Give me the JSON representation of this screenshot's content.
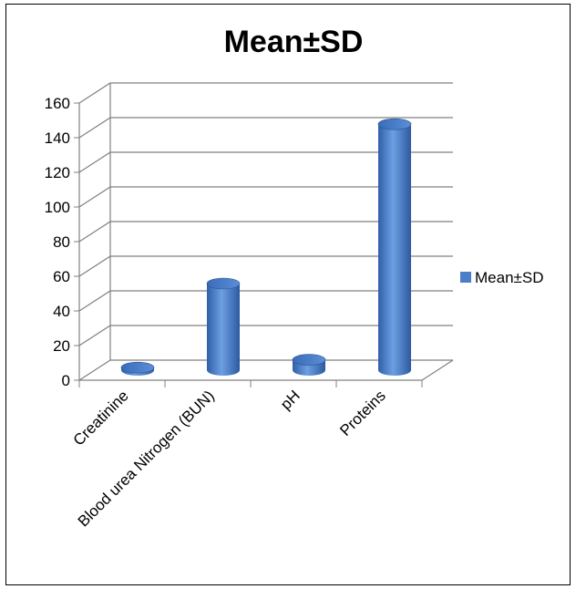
{
  "chart_data": {
    "type": "bar",
    "title": "Mean±SD",
    "categories": [
      "Creatinine",
      "Blood urea Nitrogen (BUN)",
      "pH",
      "Proteins"
    ],
    "series": [
      {
        "name": "Mean±SD",
        "values": [
          1.5,
          50,
          6,
          142
        ],
        "color": "#4a7ec8"
      }
    ],
    "ylim": [
      0,
      160
    ],
    "yticks": [
      "0",
      "20",
      "40",
      "60",
      "80",
      "100",
      "120",
      "140",
      "160"
    ],
    "grid": true,
    "three_d": true,
    "bar_shape": "cylinder",
    "legend": {
      "position": "right",
      "label": "Mean±SD"
    }
  }
}
